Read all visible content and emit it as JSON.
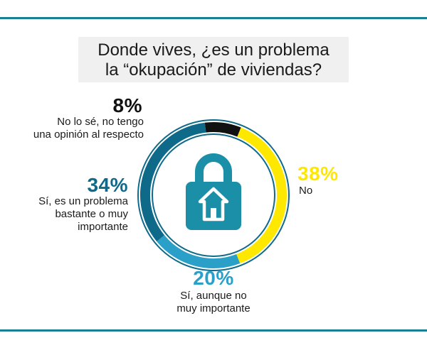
{
  "title": {
    "line1": "Donde vives, ¿es un problema",
    "line2": "la “okupación” de viviendas?"
  },
  "icon": "house-lock-icon",
  "colors": {
    "no": "#ffe800",
    "si_no_muy": "#2a9fc8",
    "si_importante": "#0f6a8a",
    "no_se": "#111111",
    "rule": "#1a7f95",
    "icon": "#1b8fa8"
  },
  "chart_data": {
    "type": "pie",
    "title": "Donde vives, ¿es un problema la “okupación” de viviendas?",
    "unit": "%",
    "slices": [
      {
        "key": "no",
        "label": "No",
        "value": 38,
        "pct_label": "38%"
      },
      {
        "key": "si_no_muy",
        "label": "Sí, aunque no muy importante",
        "label_lines": [
          "Sí, aunque no",
          "muy importante"
        ],
        "value": 20,
        "pct_label": "20%"
      },
      {
        "key": "si_importante",
        "label": "Sí, es un problema bastante o muy importante",
        "label_lines": [
          "Sí, es un problema",
          "bastante o muy",
          "importante"
        ],
        "value": 34,
        "pct_label": "34%"
      },
      {
        "key": "no_se",
        "label": "No lo sé, no tengo una opinión al respecto",
        "label_lines": [
          "No lo sé, no tengo",
          "una opinión al respecto"
        ],
        "value": 8,
        "pct_label": "8%"
      }
    ]
  }
}
